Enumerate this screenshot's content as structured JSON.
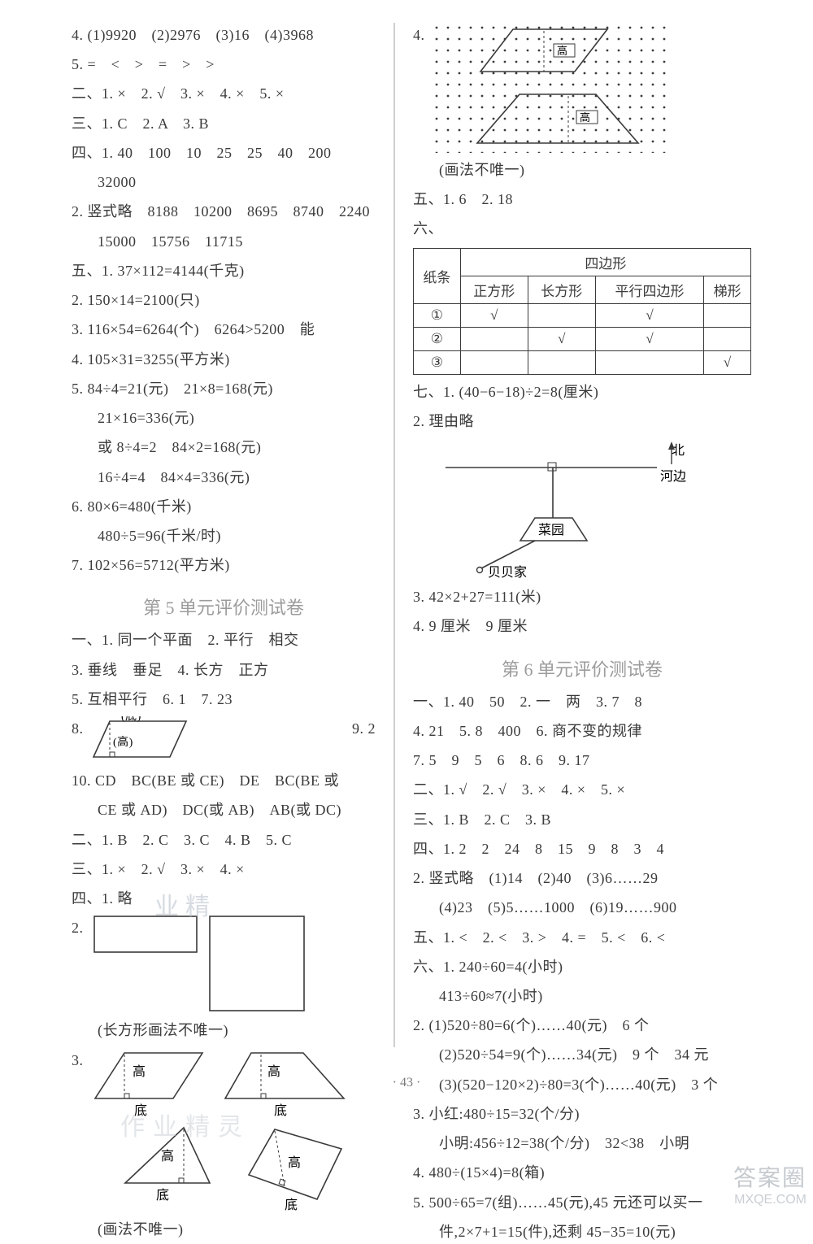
{
  "left": {
    "l1": "4. (1)9920　(2)2976　(3)16　(4)3968",
    "l2": "5. =　<　>　=　>　>",
    "l3": "二、1. ×　2. √　3. ×　4. ×　5. ×",
    "l4": "三、1. C　2. A　3. B",
    "l5": "四、1. 40　100　10　25　25　40　200",
    "l5b": "32000",
    "l6": "2. 竖式略　8188　10200　8695　8740　2240",
    "l6b": "15000　15756　11715",
    "l7": "五、1. 37×112=4144(千克)",
    "l8": "2. 150×14=2100(只)",
    "l9": "3. 116×54=6264(个)　6264>5200　能",
    "l10": "4. 105×31=3255(平方米)",
    "l11": "5. 84÷4=21(元)　21×8=168(元)",
    "l11b": "21×16=336(元)",
    "l11c": "或 8÷4=2　84×2=168(元)",
    "l11d": "16÷4=4　84×4=336(元)",
    "l12": "6. 80×6=480(千米)",
    "l12b": "480÷5=96(千米/时)",
    "l13": "7. 102×56=5712(平方米)",
    "heading5": "第 5 单元评价测试卷",
    "u5_1": "一、1. 同一个平面　2. 平行　相交",
    "u5_2": "3. 垂线　垂足　4. 长方　正方",
    "u5_3": "5. 互相平行　6. 1　7. 23",
    "u5_4a": "8.",
    "u5_4b": "9. 2",
    "u5_para_top": "(底)",
    "u5_para_side": "(高)",
    "u5_10": "10. CD　BC(BE 或 CE)　DE　BC(BE 或",
    "u5_10b": "CE 或 AD)　DC(或 AB)　AB(或 DC)",
    "u5_11": "二、1. B　2. C　3. C　4. B　5. C",
    "u5_12": "三、1. ×　2. √　3. ×　4. ×",
    "u5_13": "四、1. 略",
    "u5_14": "2.",
    "u5_rect_note": "(长方形画法不唯一)",
    "u5_15": "3.",
    "label_gao": "高",
    "label_di": "底",
    "u5_note": "(画法不唯一)"
  },
  "right": {
    "r1": "4.",
    "r_dot_note": "(画法不唯一)",
    "dot_gao": "高",
    "r2": "五、1. 6　2. 18",
    "r3": "六、",
    "table": {
      "head_paper": "纸条",
      "head_quad": "四边形",
      "cols": [
        "正方形",
        "长方形",
        "平行四边形",
        "梯形"
      ],
      "rows": [
        {
          "label": "①",
          "c": [
            true,
            false,
            true,
            false
          ]
        },
        {
          "label": "②",
          "c": [
            false,
            true,
            true,
            false
          ]
        },
        {
          "label": "③",
          "c": [
            false,
            false,
            false,
            true
          ]
        }
      ],
      "check": "√"
    },
    "r4": "七、1. (40−6−18)÷2=8(厘米)",
    "r5": "2. 理由略",
    "map": {
      "north": "北",
      "river": "河边",
      "garden": "菜园",
      "home": "贝贝家"
    },
    "r6": "3. 42×2+27=111(米)",
    "r7": "4. 9 厘米　9 厘米",
    "heading6": "第 6 单元评价测试卷",
    "u6_1": "一、1. 40　50　2. 一　两　3. 7　8",
    "u6_2": "4. 21　5. 8　400　6. 商不变的规律",
    "u6_3": "7. 5　9　5　6　8. 6　9. 17",
    "u6_4": "二、1. √　2. √　3. ×　4. ×　5. ×",
    "u6_5": "三、1. B　2. C　3. B",
    "u6_6": "四、1. 2　2　24　8　15　9　8　3　4",
    "u6_7": "2. 竖式略　(1)14　(2)40　(3)6……29",
    "u6_7b": "(4)23　(5)5……1000　(6)19……900",
    "u6_8": "五、1. <　2. <　3. >　4. =　5. <　6. <",
    "u6_9": "六、1. 240÷60=4(小时)",
    "u6_9b": "413÷60≈7(小时)",
    "u6_10": "2. (1)520÷80=6(个)……40(元)　6 个",
    "u6_10b": "(2)520÷54=9(个)……34(元)　9 个　34 元",
    "u6_10c": "(3)(520−120×2)÷80=3(个)……40(元)　3 个",
    "u6_11": "3. 小红:480÷15=32(个/分)",
    "u6_11b": "小明:456÷12=38(个/分)　32<38　小明",
    "u6_12": "4. 480÷(15×4)=8(箱)",
    "u6_13": "5. 500÷65=7(组)……45(元),45 元还可以买一",
    "u6_13b": "件,2×7+1=15(件),还剩 45−35=10(元)"
  },
  "footer": "· 43 ·",
  "wm_l": "业精",
  "wm_b": "作业精灵",
  "wm_caps": "答案圈",
  "wm_dom": "MXQE.COM",
  "colors": {
    "text": "#3a3a3a",
    "heading": "#9c9c9c",
    "rule": "#cfcfcf",
    "wm": "rgba(180,190,200,0.55)"
  }
}
